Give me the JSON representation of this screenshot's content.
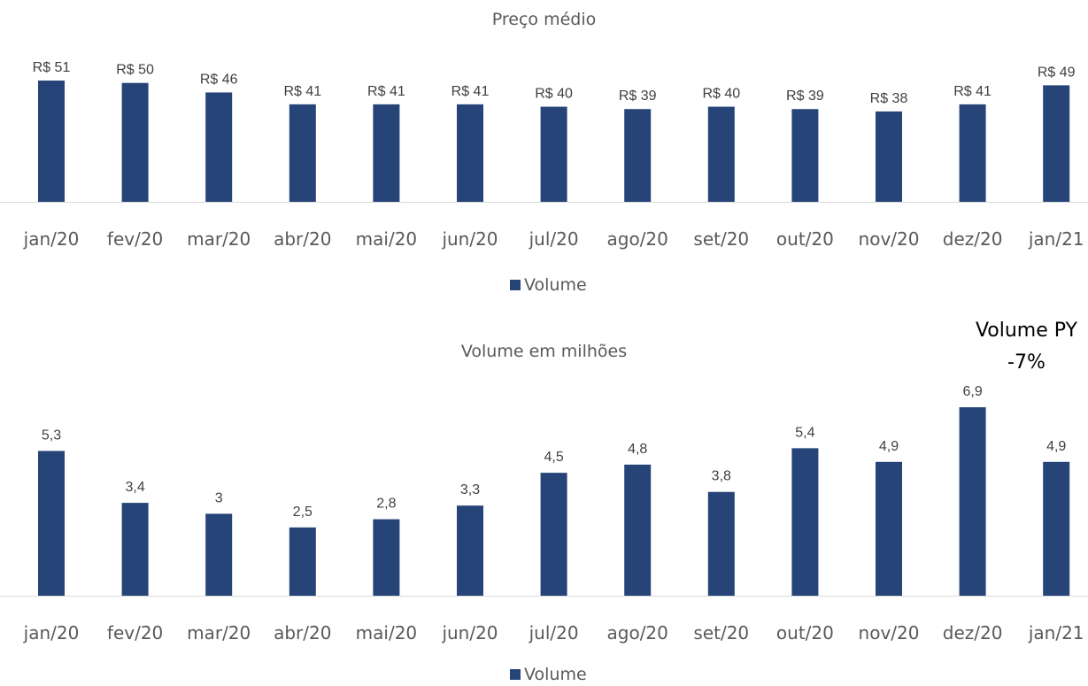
{
  "callout": {
    "title": "Volume PY",
    "value": "-7%"
  },
  "chart_data": [
    {
      "type": "bar",
      "title": "Preço médio",
      "categories": [
        "jan/20",
        "fev/20",
        "mar/20",
        "abr/20",
        "mai/20",
        "jun/20",
        "jul/20",
        "ago/20",
        "set/20",
        "out/20",
        "nov/20",
        "dez/20",
        "jan/21"
      ],
      "series": [
        {
          "name": "Volume",
          "values": [
            51,
            50,
            46,
            41,
            41,
            41,
            40,
            39,
            40,
            39,
            38,
            41,
            49
          ],
          "data_labels": [
            "R$ 51",
            "R$ 50",
            "R$ 46",
            "R$ 41",
            "R$ 41",
            "R$ 41",
            "R$ 40",
            "R$ 39",
            "R$ 40",
            "R$ 39",
            "R$ 38",
            "R$ 41",
            "R$ 49"
          ]
        }
      ],
      "ylim": [
        0,
        51
      ],
      "grid": false,
      "legend": "bottom",
      "color": "#264478"
    },
    {
      "type": "bar",
      "title": "Volume em milhões",
      "categories": [
        "jan/20",
        "fev/20",
        "mar/20",
        "abr/20",
        "mai/20",
        "jun/20",
        "jul/20",
        "ago/20",
        "set/20",
        "out/20",
        "nov/20",
        "dez/20",
        "jan/21"
      ],
      "series": [
        {
          "name": "Volume",
          "values": [
            5.3,
            3.4,
            3,
            2.5,
            2.8,
            3.3,
            4.5,
            4.8,
            3.8,
            5.4,
            4.9,
            6.9,
            4.9
          ],
          "data_labels": [
            "5,3",
            "3,4",
            "3",
            "2,5",
            "2,8",
            "3,3",
            "4,5",
            "4,8",
            "3,8",
            "5,4",
            "4,9",
            "6,9",
            "4,9"
          ]
        }
      ],
      "ylim": [
        0,
        7
      ],
      "grid": false,
      "legend": "bottom",
      "color": "#264478"
    }
  ]
}
